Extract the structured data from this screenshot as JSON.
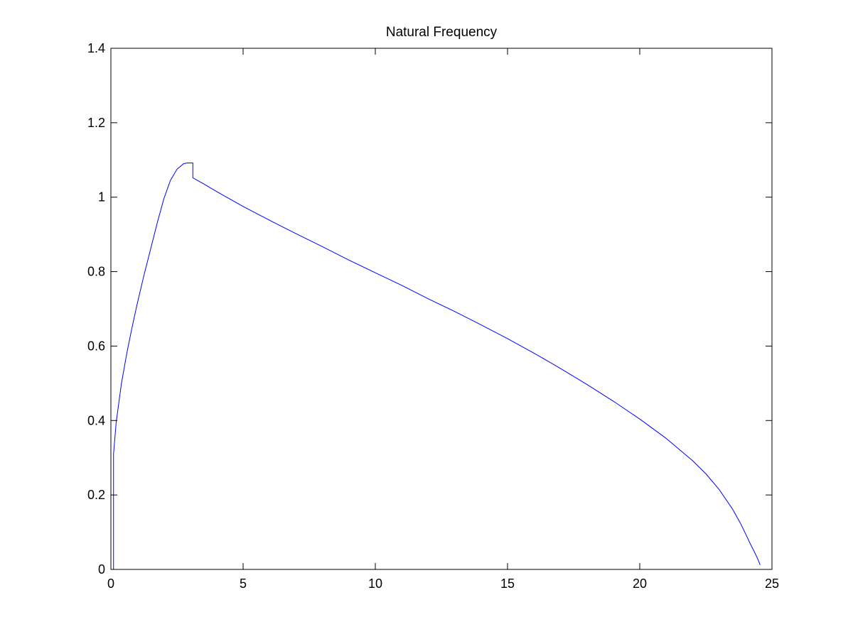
{
  "chart_data": {
    "type": "line",
    "title": "Natural Frequency",
    "xlabel": "",
    "ylabel": "",
    "xlim": [
      0,
      25
    ],
    "ylim": [
      0,
      1.4
    ],
    "xticks": [
      0,
      5,
      10,
      15,
      20,
      25
    ],
    "yticks": [
      0,
      0.2,
      0.4,
      0.6,
      0.8,
      1,
      1.2,
      1.4
    ],
    "xtick_labels": [
      "0",
      "5",
      "10",
      "15",
      "20",
      "25"
    ],
    "ytick_labels": [
      "0",
      "0.2",
      "0.4",
      "0.6",
      "0.8",
      "1",
      "1.2",
      "1.4"
    ],
    "grid": false,
    "line_color": "#0000ff",
    "series": [
      {
        "x": [
          0.1,
          0.1,
          0.2,
          0.4,
          0.6,
          0.8,
          1.0,
          1.25,
          1.5,
          1.75,
          2.0,
          2.25,
          2.5,
          2.75,
          2.9,
          3.0,
          3.1,
          3.1,
          3.5,
          4.0,
          5.0,
          6.0,
          7.0,
          8.0,
          9.0,
          10.0,
          11.0,
          12.0,
          13.0,
          14.0,
          15.0,
          16.0,
          17.0,
          18.0,
          19.0,
          20.0,
          21.0,
          22.0,
          22.5,
          23.0,
          23.5,
          23.8,
          24.0,
          24.2,
          24.35,
          24.45,
          24.52,
          24.55
        ],
        "y": [
          0.0,
          0.31,
          0.395,
          0.5,
          0.58,
          0.65,
          0.715,
          0.79,
          0.86,
          0.93,
          0.995,
          1.045,
          1.075,
          1.09,
          1.092,
          1.092,
          1.092,
          1.052,
          1.036,
          1.015,
          0.975,
          0.938,
          0.902,
          0.867,
          0.831,
          0.797,
          0.763,
          0.727,
          0.693,
          0.657,
          0.62,
          0.581,
          0.54,
          0.497,
          0.452,
          0.404,
          0.352,
          0.292,
          0.257,
          0.215,
          0.163,
          0.125,
          0.096,
          0.066,
          0.045,
          0.03,
          0.018,
          0.012
        ]
      }
    ]
  }
}
